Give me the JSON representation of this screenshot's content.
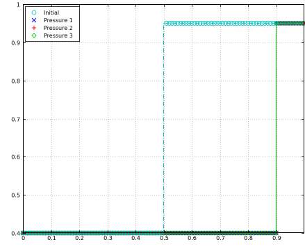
{
  "chart_data": {
    "type": "line",
    "title": "",
    "xlabel": "",
    "ylabel": "",
    "xlim": [
      0,
      1
    ],
    "ylim": [
      0.4,
      1.0
    ],
    "grid": true,
    "legend_position": "top-left",
    "x_ticks": [
      "0",
      "0.1",
      "0.2",
      "0.3",
      "0.4",
      "0.5",
      "0.6",
      "0.7",
      "0.8",
      "0.9"
    ],
    "y_ticks": [
      "0.4",
      "0.5",
      "0.6",
      "0.7",
      "0.8",
      "0.9",
      "1"
    ],
    "series": [
      {
        "name": "Initial",
        "color": "#00bfbf",
        "marker": "circle",
        "line_style": "dashdot",
        "x": [
          0,
          0.5,
          0.5,
          1.0
        ],
        "y": [
          0.4,
          0.4,
          0.95,
          0.95
        ],
        "marker_ranges": [
          [
            0,
            0.49,
            0.4
          ],
          [
            0.51,
            0.9,
            0.95
          ]
        ]
      },
      {
        "name": "Pressure 1",
        "color": "#0000ff",
        "marker": "x",
        "line_style": "solid",
        "x": [
          0,
          0.9,
          0.9,
          1.0
        ],
        "y": [
          0.4,
          0.4,
          0.95,
          0.95
        ],
        "marker_ranges": [
          [
            0,
            0.9,
            0.4
          ],
          [
            0.9,
            1.0,
            0.95
          ]
        ]
      },
      {
        "name": "Pressure 2",
        "color": "#ff0000",
        "marker": "plus",
        "line_style": "solid",
        "x": [
          0,
          0.9,
          0.9,
          1.0
        ],
        "y": [
          0.4,
          0.4,
          0.95,
          0.95
        ],
        "marker_ranges": [
          [
            0,
            0.9,
            0.4
          ],
          [
            0.9,
            1.0,
            0.95
          ]
        ]
      },
      {
        "name": "Pressure 3",
        "color": "#00bf00",
        "marker": "diamond",
        "line_style": "solid",
        "x": [
          0,
          0.9,
          0.9,
          1.0
        ],
        "y": [
          0.4,
          0.4,
          0.95,
          0.95
        ],
        "marker_ranges": [
          [
            0,
            0.9,
            0.4
          ],
          [
            0.9,
            1.0,
            0.95
          ]
        ]
      }
    ]
  }
}
